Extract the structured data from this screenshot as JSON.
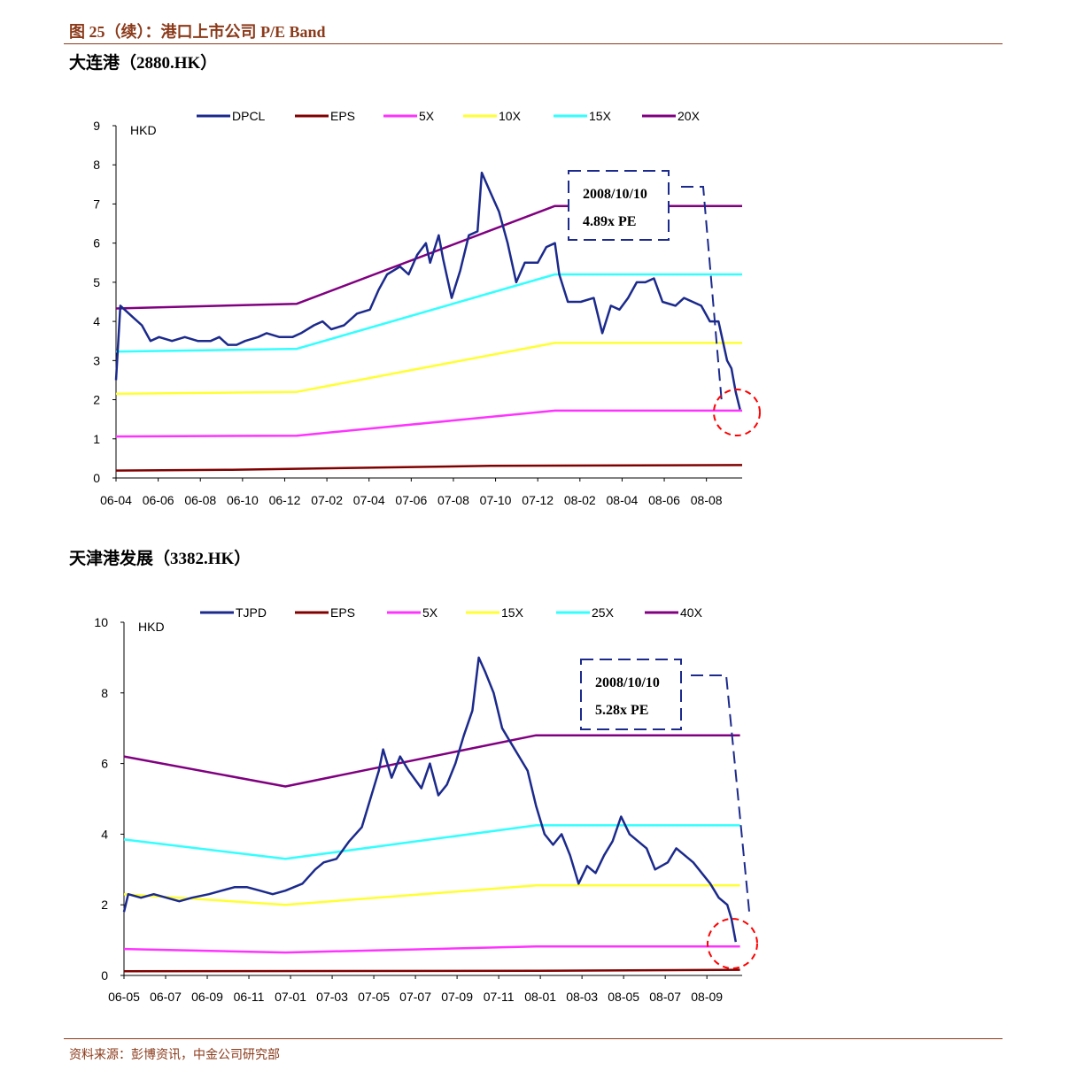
{
  "figure_title": "图 25（续）：港口上市公司 P/E Band",
  "source": "资料来源：彭博资讯，中金公司研究部",
  "chart_data": [
    {
      "type": "line",
      "title": "大连港（2880.HK）",
      "ylabel": "HKD",
      "ylim": [
        0,
        9
      ],
      "yticks": [
        "0",
        "1",
        "2",
        "3",
        "4",
        "5",
        "6",
        "7",
        "8",
        "9"
      ],
      "xticks": [
        "06-04",
        "06-06",
        "06-08",
        "06-10",
        "06-12",
        "07-02",
        "07-04",
        "07-06",
        "07-08",
        "07-10",
        "07-12",
        "08-02",
        "08-04",
        "08-06",
        "08-08"
      ],
      "legend": [
        "DPCL",
        "EPS",
        "5X",
        "10X",
        "15X",
        "20X"
      ],
      "colors": {
        "price": "#1b2a8c",
        "eps": "#800000",
        "b1": "#ff33ff",
        "b2": "#ffff33",
        "b3": "#33ffff",
        "b4": "#800080",
        "circle": "#ff0000"
      },
      "annotation": {
        "date": "2008/10/10",
        "pe": "4.89x PE"
      },
      "price": [
        [
          0,
          2.5
        ],
        [
          0.1,
          4.4
        ],
        [
          0.4,
          4.1
        ],
        [
          0.6,
          3.9
        ],
        [
          0.8,
          3.5
        ],
        [
          1.0,
          3.6
        ],
        [
          1.3,
          3.5
        ],
        [
          1.6,
          3.6
        ],
        [
          1.9,
          3.5
        ],
        [
          2.2,
          3.5
        ],
        [
          2.4,
          3.6
        ],
        [
          2.6,
          3.4
        ],
        [
          2.8,
          3.4
        ],
        [
          3.0,
          3.5
        ],
        [
          3.3,
          3.6
        ],
        [
          3.5,
          3.7
        ],
        [
          3.8,
          3.6
        ],
        [
          4.1,
          3.6
        ],
        [
          4.3,
          3.7
        ],
        [
          4.6,
          3.9
        ],
        [
          4.8,
          4.0
        ],
        [
          5.0,
          3.8
        ],
        [
          5.3,
          3.9
        ],
        [
          5.6,
          4.2
        ],
        [
          5.9,
          4.3
        ],
        [
          6.1,
          4.8
        ],
        [
          6.3,
          5.2
        ],
        [
          6.6,
          5.4
        ],
        [
          6.8,
          5.2
        ],
        [
          7.0,
          5.7
        ],
        [
          7.2,
          6.0
        ],
        [
          7.3,
          5.5
        ],
        [
          7.5,
          6.2
        ],
        [
          7.6,
          5.6
        ],
        [
          7.8,
          4.6
        ],
        [
          8.0,
          5.3
        ],
        [
          8.2,
          6.2
        ],
        [
          8.4,
          6.3
        ],
        [
          8.5,
          7.8
        ],
        [
          8.7,
          7.3
        ],
        [
          8.9,
          6.8
        ],
        [
          9.1,
          6.0
        ],
        [
          9.3,
          5.0
        ],
        [
          9.5,
          5.5
        ],
        [
          9.8,
          5.5
        ],
        [
          10.0,
          5.9
        ],
        [
          10.2,
          6.0
        ],
        [
          10.3,
          5.2
        ],
        [
          10.5,
          4.5
        ],
        [
          10.8,
          4.5
        ],
        [
          11.1,
          4.6
        ],
        [
          11.3,
          3.7
        ],
        [
          11.5,
          4.4
        ],
        [
          11.7,
          4.3
        ],
        [
          11.9,
          4.6
        ],
        [
          12.1,
          5.0
        ],
        [
          12.3,
          5.0
        ],
        [
          12.5,
          5.1
        ],
        [
          12.7,
          4.5
        ],
        [
          13.0,
          4.4
        ],
        [
          13.2,
          4.6
        ],
        [
          13.4,
          4.5
        ],
        [
          13.6,
          4.4
        ],
        [
          13.8,
          4.0
        ],
        [
          14.0,
          4.0
        ],
        [
          14.2,
          3.0
        ],
        [
          14.3,
          2.8
        ],
        [
          14.4,
          2.2
        ],
        [
          14.5,
          1.75
        ]
      ],
      "eps": [
        [
          0,
          0.19
        ],
        [
          2.7,
          0.21
        ],
        [
          5.7,
          0.26
        ],
        [
          8.7,
          0.31
        ],
        [
          14.55,
          0.33
        ]
      ],
      "bands": [
        {
          "name": "5X",
          "points": [
            [
              0,
              1.06
            ],
            [
              4.2,
              1.08
            ],
            [
              10.2,
              1.72
            ],
            [
              14.55,
              1.72
            ]
          ]
        },
        {
          "name": "10X",
          "points": [
            [
              0,
              2.15
            ],
            [
              4.2,
              2.2
            ],
            [
              10.2,
              3.45
            ],
            [
              14.55,
              3.45
            ]
          ]
        },
        {
          "name": "15X",
          "points": [
            [
              0,
              3.23
            ],
            [
              4.2,
              3.3
            ],
            [
              10.2,
              5.2
            ],
            [
              14.55,
              5.2
            ]
          ]
        },
        {
          "name": "20X",
          "points": [
            [
              0,
              4.33
            ],
            [
              4.2,
              4.45
            ],
            [
              10.2,
              6.95
            ],
            [
              14.55,
              6.95
            ]
          ]
        }
      ]
    },
    {
      "type": "line",
      "title": "天津港发展（3382.HK）",
      "ylabel": "HKD",
      "ylim": [
        0,
        10
      ],
      "yticks": [
        "0",
        "2",
        "4",
        "6",
        "8",
        "10"
      ],
      "xticks": [
        "06-05",
        "06-07",
        "06-09",
        "06-11",
        "07-01",
        "07-03",
        "07-05",
        "07-07",
        "07-09",
        "07-11",
        "08-01",
        "08-03",
        "08-05",
        "08-07",
        "08-09"
      ],
      "legend": [
        "TJPD",
        "EPS",
        "5X",
        "15X",
        "25X",
        "40X"
      ],
      "colors": {
        "price": "#1b2a8c",
        "eps": "#800000",
        "b1": "#ff33ff",
        "b2": "#ffff33",
        "b3": "#33ffff",
        "b4": "#800080",
        "circle": "#ff0000"
      },
      "annotation": {
        "date": "2008/10/10",
        "pe": "5.28x PE"
      },
      "price": [
        [
          0,
          1.8
        ],
        [
          0.1,
          2.3
        ],
        [
          0.4,
          2.2
        ],
        [
          0.7,
          2.3
        ],
        [
          1.0,
          2.2
        ],
        [
          1.3,
          2.1
        ],
        [
          1.6,
          2.2
        ],
        [
          2.0,
          2.3
        ],
        [
          2.3,
          2.4
        ],
        [
          2.6,
          2.5
        ],
        [
          2.9,
          2.5
        ],
        [
          3.2,
          2.4
        ],
        [
          3.5,
          2.3
        ],
        [
          3.8,
          2.4
        ],
        [
          4.2,
          2.6
        ],
        [
          4.5,
          3.0
        ],
        [
          4.7,
          3.2
        ],
        [
          5.0,
          3.3
        ],
        [
          5.3,
          3.8
        ],
        [
          5.6,
          4.2
        ],
        [
          5.8,
          5.0
        ],
        [
          6.0,
          5.8
        ],
        [
          6.1,
          6.4
        ],
        [
          6.3,
          5.6
        ],
        [
          6.5,
          6.2
        ],
        [
          6.7,
          5.8
        ],
        [
          7.0,
          5.3
        ],
        [
          7.2,
          6.0
        ],
        [
          7.4,
          5.1
        ],
        [
          7.6,
          5.4
        ],
        [
          7.8,
          6.0
        ],
        [
          8.0,
          6.8
        ],
        [
          8.2,
          7.5
        ],
        [
          8.35,
          9.0
        ],
        [
          8.5,
          8.6
        ],
        [
          8.7,
          8.0
        ],
        [
          8.9,
          7.0
        ],
        [
          9.1,
          6.6
        ],
        [
          9.3,
          6.2
        ],
        [
          9.5,
          5.8
        ],
        [
          9.7,
          4.8
        ],
        [
          9.9,
          4.0
        ],
        [
          10.1,
          3.7
        ],
        [
          10.3,
          4.0
        ],
        [
          10.5,
          3.4
        ],
        [
          10.7,
          2.6
        ],
        [
          10.9,
          3.1
        ],
        [
          11.1,
          2.9
        ],
        [
          11.3,
          3.4
        ],
        [
          11.5,
          3.8
        ],
        [
          11.7,
          4.5
        ],
        [
          11.9,
          4.0
        ],
        [
          12.1,
          3.8
        ],
        [
          12.3,
          3.6
        ],
        [
          12.5,
          3.0
        ],
        [
          12.8,
          3.2
        ],
        [
          13.0,
          3.6
        ],
        [
          13.2,
          3.4
        ],
        [
          13.4,
          3.2
        ],
        [
          13.6,
          2.9
        ],
        [
          13.8,
          2.6
        ],
        [
          14.0,
          2.2
        ],
        [
          14.2,
          2.0
        ],
        [
          14.3,
          1.6
        ],
        [
          14.4,
          0.95
        ]
      ],
      "eps": [
        [
          0,
          0.12
        ],
        [
          9.7,
          0.13
        ],
        [
          14.5,
          0.16
        ]
      ],
      "bands": [
        {
          "name": "5X",
          "points": [
            [
              0,
              0.75
            ],
            [
              3.8,
              0.65
            ],
            [
              9.7,
              0.82
            ],
            [
              14.5,
              0.82
            ]
          ]
        },
        {
          "name": "15X",
          "points": [
            [
              0,
              2.3
            ],
            [
              3.8,
              2.0
            ],
            [
              9.7,
              2.55
            ],
            [
              14.5,
              2.55
            ]
          ]
        },
        {
          "name": "25X",
          "points": [
            [
              0,
              3.85
            ],
            [
              3.8,
              3.3
            ],
            [
              9.7,
              4.25
            ],
            [
              14.5,
              4.25
            ]
          ]
        },
        {
          "name": "40X",
          "points": [
            [
              0,
              6.2
            ],
            [
              3.8,
              5.35
            ],
            [
              9.7,
              6.8
            ],
            [
              14.5,
              6.8
            ]
          ]
        }
      ]
    }
  ]
}
